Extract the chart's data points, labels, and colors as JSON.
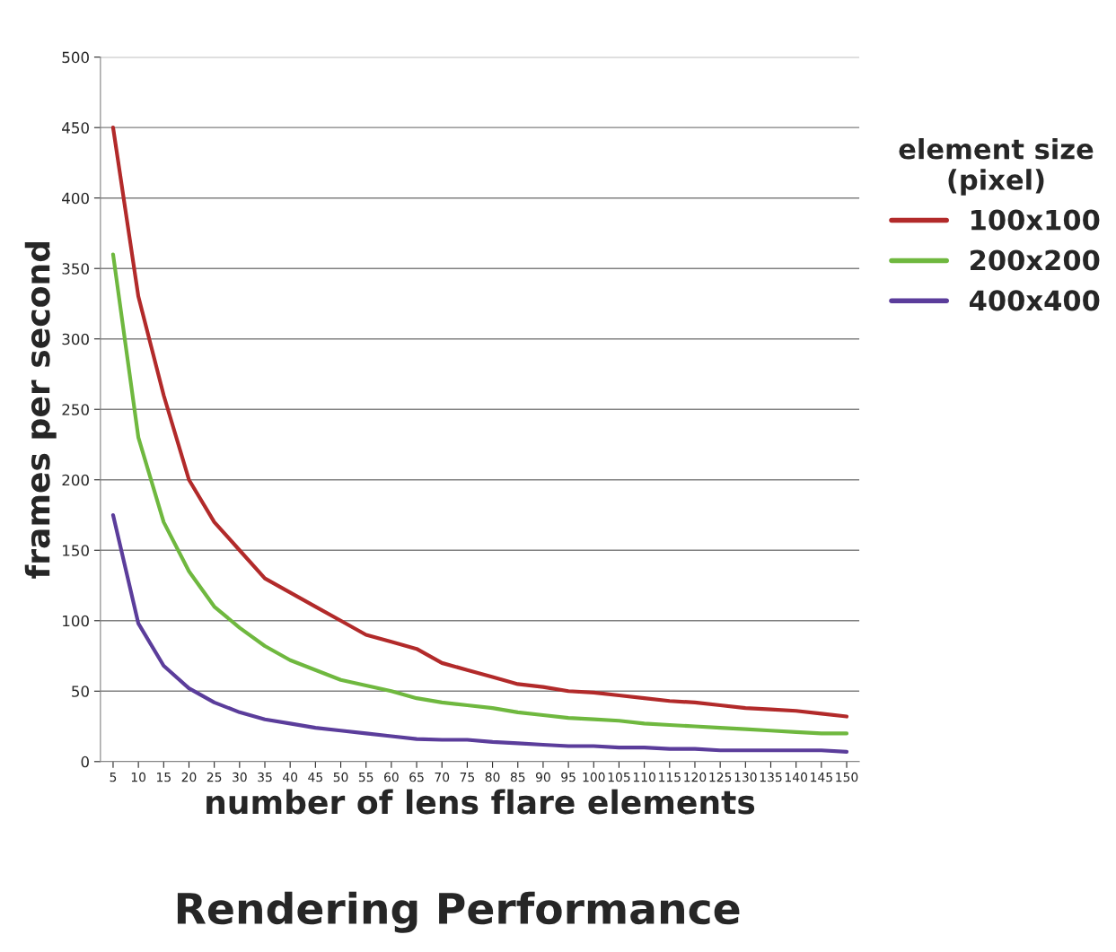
{
  "chart_data": {
    "type": "line",
    "title": "Rendering Performance",
    "xlabel": "number of lens flare elements",
    "ylabel": "frames per second",
    "legend_title": "element size\n(pixel)",
    "categories": [
      "5",
      "10",
      "15",
      "20",
      "25",
      "30",
      "35",
      "40",
      "45",
      "50",
      "55",
      "60",
      "65",
      "70",
      "75",
      "80",
      "85",
      "90",
      "95",
      "100",
      "105",
      "110",
      "115",
      "120",
      "125",
      "130",
      "135",
      "140",
      "145",
      "150"
    ],
    "series": [
      {
        "name": "100x100",
        "color": "#b22a2a",
        "values": [
          450,
          330,
          260,
          200,
          170,
          150,
          130,
          120,
          110,
          100,
          90,
          85,
          80,
          70,
          65,
          60,
          55,
          53,
          50,
          49,
          47,
          45,
          43,
          42,
          40,
          38,
          37,
          36,
          34,
          32
        ]
      },
      {
        "name": "200x200",
        "color": "#6fb83f",
        "values": [
          360,
          230,
          170,
          135,
          110,
          95,
          82,
          72,
          65,
          58,
          54,
          50,
          45,
          42,
          40,
          38,
          35,
          33,
          31,
          30,
          29,
          27,
          26,
          25,
          24,
          23,
          22,
          21,
          20,
          20
        ]
      },
      {
        "name": "400x400",
        "color": "#5b3d9b",
        "values": [
          175,
          98,
          68,
          52,
          42,
          35,
          30,
          27,
          24,
          22,
          20,
          18,
          16,
          15.5,
          15.5,
          14,
          13,
          12,
          11,
          11,
          10,
          10,
          9,
          9,
          8,
          8,
          8,
          8,
          8,
          7
        ]
      }
    ],
    "ylim": [
      0,
      500
    ],
    "yticks": [
      0,
      50,
      100,
      150,
      200,
      250,
      300,
      350,
      400,
      450,
      500
    ],
    "grid": "y",
    "legend": "right",
    "marker": "none",
    "line_style": "solid"
  }
}
